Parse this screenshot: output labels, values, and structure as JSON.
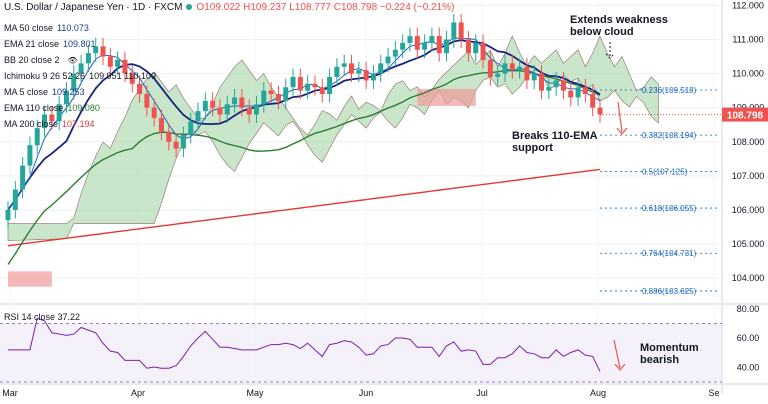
{
  "header": {
    "symbol": "U.S. Dollar / Japanese Yen · 1D · FXCM",
    "ohlc": "O109.022 H109.237 L108.777 C108.798 −0.224 (−0.21%)"
  },
  "legend": [
    {
      "label": "MA 50 close",
      "value": "110.073",
      "color": "#1e3a8a"
    },
    {
      "label": "EMA 21 close",
      "value": "109.801",
      "color": "#1e3a8a"
    },
    {
      "label": "BB 20 close 2",
      "value": "",
      "color": "#787b86"
    },
    {
      "label": "Ichimoku 9 26 52 26",
      "value": "109.951  110.109",
      "color": "#131722"
    },
    {
      "label": "MA 5 close",
      "value": "109.253",
      "color": "#1e3a8a"
    },
    {
      "label": "EMA 110 close",
      "value": "109.080",
      "color": "#2e7d32"
    },
    {
      "label": "MA 200 close",
      "value": "107.194",
      "color": "#e53935"
    }
  ],
  "annotations": {
    "extends": "Extends weakness\nbelow cloud",
    "breaks": "Breaks 110-EMA\nsupport",
    "momentum": "Momentum\nbearish"
  },
  "rsi_label": "RSI 14 close  37.22",
  "price_label": "108.798",
  "colors": {
    "up": "#26a69a",
    "down": "#ef5350",
    "cloud_up": "#a5d6a7",
    "cloud_down": "#ef9a9a",
    "ema110": "#2e7d32",
    "ma200": "#e53935",
    "fib": "#1565c0",
    "rsi": "#7b1fa2"
  },
  "chart_data": [
    {
      "type": "candlestick",
      "title": "U.S. Dollar / Japanese Yen · 1D · FXCM",
      "x": [
        "Mar",
        "Apr",
        "May",
        "Jun",
        "Jul",
        "Aug",
        "Se"
      ],
      "yaxis_ticks": [
        104.0,
        105.0,
        106.0,
        107.0,
        108.0,
        109.0,
        110.0,
        111.0,
        112.0
      ],
      "ylim": [
        103.3,
        112.1
      ],
      "last_price": 108.798,
      "fibonacci": [
        {
          "level": "0.236",
          "value": 109.518
        },
        {
          "level": "0.382",
          "value": 108.194
        },
        {
          "level": "0.5",
          "value": 107.125
        },
        {
          "level": "0.618",
          "value": 106.055
        },
        {
          "level": "0.764",
          "value": 104.731
        },
        {
          "level": "0.886",
          "value": 103.625
        }
      ],
      "series_close": [
        106.0,
        106.6,
        107.3,
        107.9,
        108.4,
        108.8,
        108.6,
        109.1,
        109.5,
        110.0,
        110.3,
        110.6,
        110.8,
        110.5,
        110.2,
        110.4,
        110.0,
        109.7,
        109.4,
        109.0,
        108.7,
        108.3,
        108.0,
        107.8,
        108.2,
        108.6,
        108.9,
        109.2,
        109.0,
        108.8,
        109.1,
        109.3,
        109.0,
        108.8,
        109.1,
        109.5,
        109.4,
        109.2,
        109.6,
        109.9,
        109.5,
        109.7,
        109.6,
        109.4,
        109.9,
        110.2,
        110.3,
        110.0,
        110.1,
        109.8,
        110.0,
        110.3,
        110.5,
        110.7,
        110.9,
        111.1,
        110.7,
        110.9,
        111.1,
        110.6,
        111.0,
        111.5,
        111.0,
        110.6,
        110.9,
        110.4,
        109.9,
        110.0,
        110.3,
        110.1,
        110.2,
        109.8,
        110.0,
        109.5,
        109.6,
        109.8,
        109.5,
        109.3,
        109.6,
        109.4,
        109.0,
        108.8
      ]
    },
    {
      "type": "line",
      "title": "RSI 14 close",
      "value": 37.22,
      "ylim": [
        30,
        82
      ],
      "yaxis_ticks": [
        40.0,
        60.0,
        80.0
      ]
    }
  ]
}
